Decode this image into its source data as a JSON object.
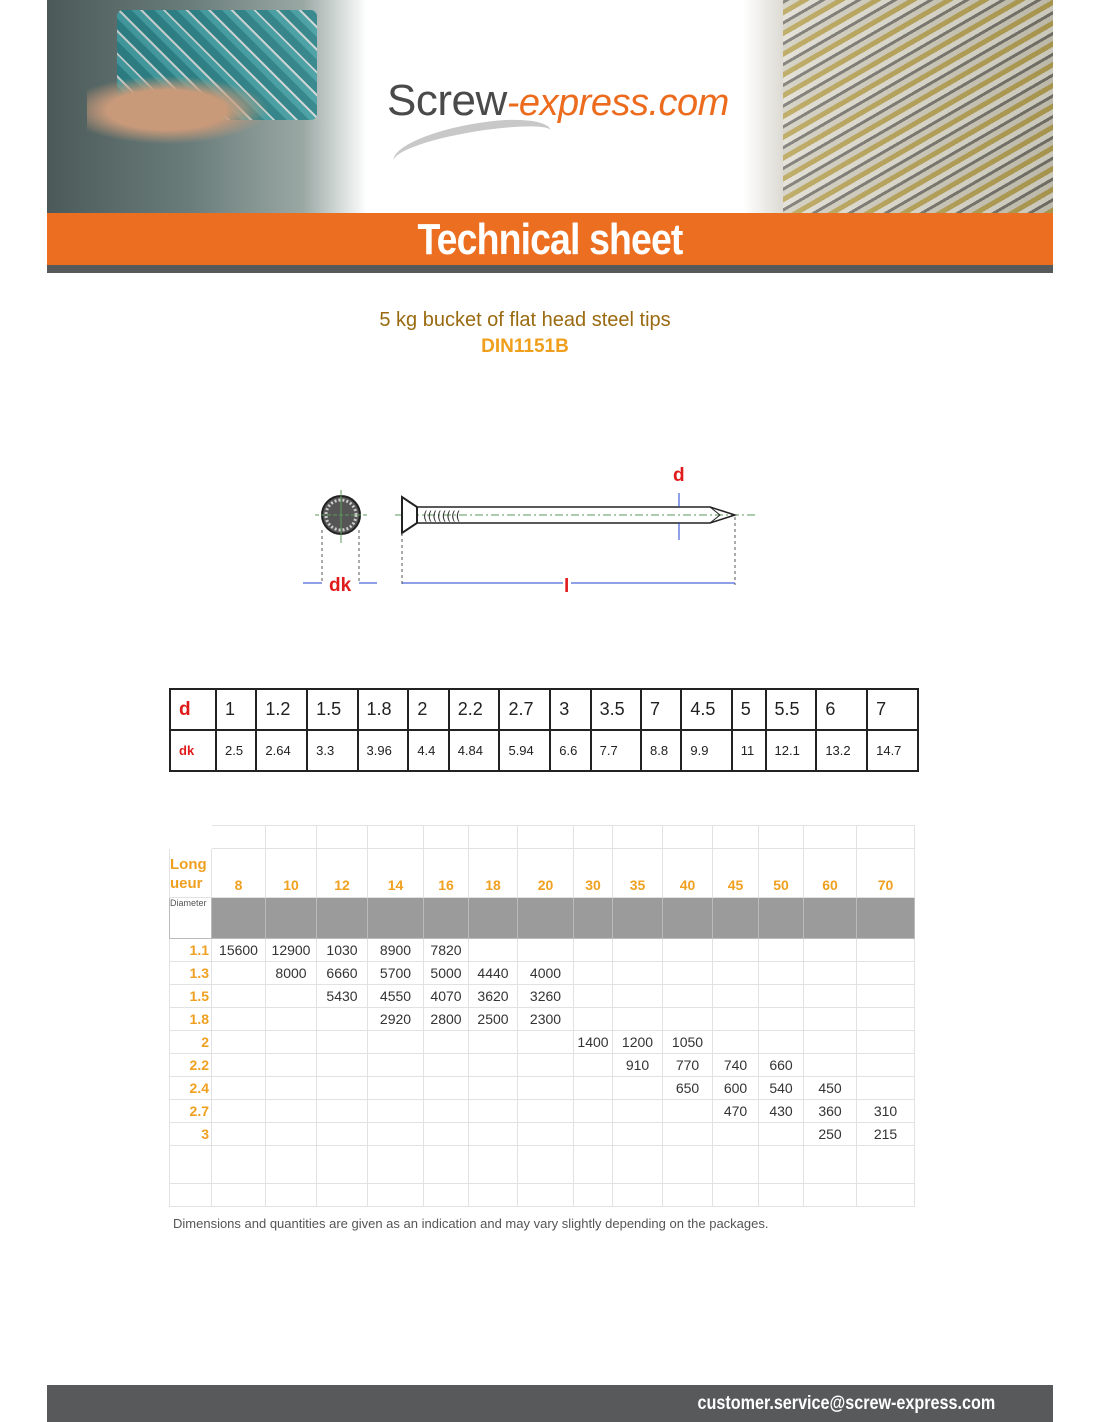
{
  "header": {
    "logo_main": "Screw",
    "logo_accent": "-express.com",
    "banner_title": "Technical sheet",
    "colors": {
      "orange": "#ec6f21",
      "dark_gray": "#58595b"
    }
  },
  "product": {
    "title": "5 kg bucket of flat head steel tips",
    "standard": "DIN1151B"
  },
  "diagram": {
    "label_d": "d",
    "label_dk": "dk",
    "label_l": "l"
  },
  "dimension_table": {
    "d_label": "d",
    "dk_label": "dk",
    "d": [
      "1",
      "1.2",
      "1.5",
      "1.8",
      "2",
      "2.2",
      "2.7",
      "3",
      "3.5",
      "7",
      "4.5",
      "5",
      "5.5",
      "6",
      "7"
    ],
    "dk": [
      "2.5",
      "2.64",
      "3.3",
      "3.96",
      "4.4",
      "4.84",
      "5.94",
      "6.6",
      "7.7",
      "8.8",
      "9.9",
      "11",
      "12.1",
      "13.2",
      "14.7"
    ]
  },
  "quantity_table": {
    "length_label": "Long ueur",
    "diameter_label": "Diameter",
    "lengths": [
      "8",
      "10",
      "12",
      "14",
      "16",
      "18",
      "20",
      "30",
      "35",
      "40",
      "45",
      "50",
      "60",
      "70"
    ],
    "rows": [
      {
        "diameter": "1.1",
        "values": [
          "15600",
          "12900",
          "1030",
          "8900",
          "7820",
          "",
          "",
          "",
          "",
          "",
          "",
          "",
          "",
          ""
        ]
      },
      {
        "diameter": "1.3",
        "values": [
          "",
          "8000",
          "6660",
          "5700",
          "5000",
          "4440",
          "4000",
          "",
          "",
          "",
          "",
          "",
          "",
          ""
        ]
      },
      {
        "diameter": "1.5",
        "values": [
          "",
          "",
          "5430",
          "4550",
          "4070",
          "3620",
          "3260",
          "",
          "",
          "",
          "",
          "",
          "",
          ""
        ]
      },
      {
        "diameter": "1.8",
        "values": [
          "",
          "",
          "",
          "2920",
          "2800",
          "2500",
          "2300",
          "",
          "",
          "",
          "",
          "",
          "",
          ""
        ]
      },
      {
        "diameter": "2",
        "values": [
          "",
          "",
          "",
          "",
          "",
          "",
          "",
          "1400",
          "1200",
          "1050",
          "",
          "",
          "",
          ""
        ]
      },
      {
        "diameter": "2.2",
        "values": [
          "",
          "",
          "",
          "",
          "",
          "",
          "",
          "",
          "910",
          "770",
          "740",
          "660",
          "",
          ""
        ]
      },
      {
        "diameter": "2.4",
        "values": [
          "",
          "",
          "",
          "",
          "",
          "",
          "",
          "",
          "",
          "650",
          "600",
          "540",
          "450",
          ""
        ]
      },
      {
        "diameter": "2.7",
        "values": [
          "",
          "",
          "",
          "",
          "",
          "",
          "",
          "",
          "",
          "",
          "470",
          "430",
          "360",
          "310"
        ]
      },
      {
        "diameter": "3",
        "values": [
          "",
          "",
          "",
          "",
          "",
          "",
          "",
          "",
          "",
          "",
          "",
          "",
          "250",
          "215"
        ]
      }
    ],
    "note": "Dimensions and quantities are given as an indication and may vary slightly depending on the packages."
  },
  "footer": {
    "email": "customer.service@screw-express.com"
  }
}
